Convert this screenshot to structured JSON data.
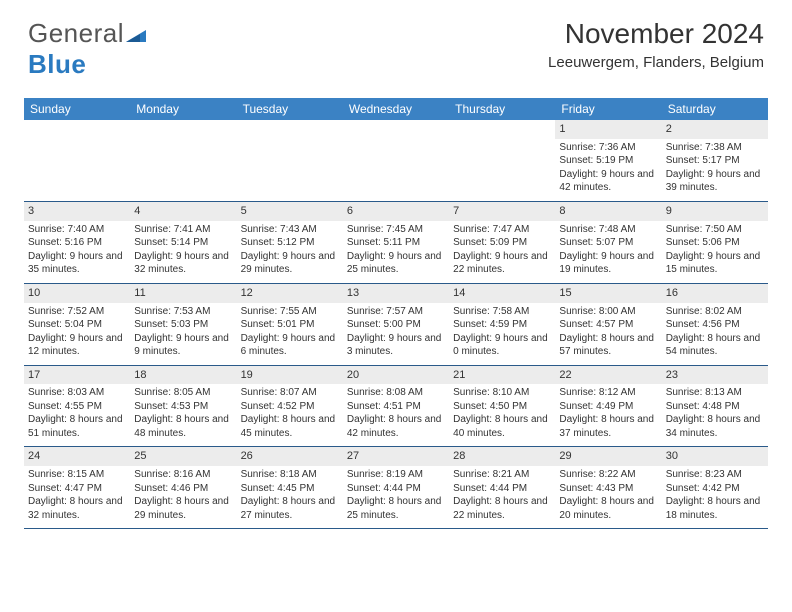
{
  "logo": {
    "text1": "General",
    "text2": "Blue"
  },
  "title": "November 2024",
  "location": "Leeuwergem, Flanders, Belgium",
  "colors": {
    "header_bg": "#3b82c4",
    "header_text": "#ffffff",
    "daynum_bg": "#ececec",
    "row_border": "#2a5a8a",
    "logo_gray": "#555555",
    "logo_blue": "#2a7ac0"
  },
  "weekdays": [
    "Sunday",
    "Monday",
    "Tuesday",
    "Wednesday",
    "Thursday",
    "Friday",
    "Saturday"
  ],
  "weeks": [
    [
      {
        "empty": true
      },
      {
        "empty": true
      },
      {
        "empty": true
      },
      {
        "empty": true
      },
      {
        "empty": true
      },
      {
        "day": "1",
        "sunrise": "Sunrise: 7:36 AM",
        "sunset": "Sunset: 5:19 PM",
        "daylight": "Daylight: 9 hours and 42 minutes."
      },
      {
        "day": "2",
        "sunrise": "Sunrise: 7:38 AM",
        "sunset": "Sunset: 5:17 PM",
        "daylight": "Daylight: 9 hours and 39 minutes."
      }
    ],
    [
      {
        "day": "3",
        "sunrise": "Sunrise: 7:40 AM",
        "sunset": "Sunset: 5:16 PM",
        "daylight": "Daylight: 9 hours and 35 minutes."
      },
      {
        "day": "4",
        "sunrise": "Sunrise: 7:41 AM",
        "sunset": "Sunset: 5:14 PM",
        "daylight": "Daylight: 9 hours and 32 minutes."
      },
      {
        "day": "5",
        "sunrise": "Sunrise: 7:43 AM",
        "sunset": "Sunset: 5:12 PM",
        "daylight": "Daylight: 9 hours and 29 minutes."
      },
      {
        "day": "6",
        "sunrise": "Sunrise: 7:45 AM",
        "sunset": "Sunset: 5:11 PM",
        "daylight": "Daylight: 9 hours and 25 minutes."
      },
      {
        "day": "7",
        "sunrise": "Sunrise: 7:47 AM",
        "sunset": "Sunset: 5:09 PM",
        "daylight": "Daylight: 9 hours and 22 minutes."
      },
      {
        "day": "8",
        "sunrise": "Sunrise: 7:48 AM",
        "sunset": "Sunset: 5:07 PM",
        "daylight": "Daylight: 9 hours and 19 minutes."
      },
      {
        "day": "9",
        "sunrise": "Sunrise: 7:50 AM",
        "sunset": "Sunset: 5:06 PM",
        "daylight": "Daylight: 9 hours and 15 minutes."
      }
    ],
    [
      {
        "day": "10",
        "sunrise": "Sunrise: 7:52 AM",
        "sunset": "Sunset: 5:04 PM",
        "daylight": "Daylight: 9 hours and 12 minutes."
      },
      {
        "day": "11",
        "sunrise": "Sunrise: 7:53 AM",
        "sunset": "Sunset: 5:03 PM",
        "daylight": "Daylight: 9 hours and 9 minutes."
      },
      {
        "day": "12",
        "sunrise": "Sunrise: 7:55 AM",
        "sunset": "Sunset: 5:01 PM",
        "daylight": "Daylight: 9 hours and 6 minutes."
      },
      {
        "day": "13",
        "sunrise": "Sunrise: 7:57 AM",
        "sunset": "Sunset: 5:00 PM",
        "daylight": "Daylight: 9 hours and 3 minutes."
      },
      {
        "day": "14",
        "sunrise": "Sunrise: 7:58 AM",
        "sunset": "Sunset: 4:59 PM",
        "daylight": "Daylight: 9 hours and 0 minutes."
      },
      {
        "day": "15",
        "sunrise": "Sunrise: 8:00 AM",
        "sunset": "Sunset: 4:57 PM",
        "daylight": "Daylight: 8 hours and 57 minutes."
      },
      {
        "day": "16",
        "sunrise": "Sunrise: 8:02 AM",
        "sunset": "Sunset: 4:56 PM",
        "daylight": "Daylight: 8 hours and 54 minutes."
      }
    ],
    [
      {
        "day": "17",
        "sunrise": "Sunrise: 8:03 AM",
        "sunset": "Sunset: 4:55 PM",
        "daylight": "Daylight: 8 hours and 51 minutes."
      },
      {
        "day": "18",
        "sunrise": "Sunrise: 8:05 AM",
        "sunset": "Sunset: 4:53 PM",
        "daylight": "Daylight: 8 hours and 48 minutes."
      },
      {
        "day": "19",
        "sunrise": "Sunrise: 8:07 AM",
        "sunset": "Sunset: 4:52 PM",
        "daylight": "Daylight: 8 hours and 45 minutes."
      },
      {
        "day": "20",
        "sunrise": "Sunrise: 8:08 AM",
        "sunset": "Sunset: 4:51 PM",
        "daylight": "Daylight: 8 hours and 42 minutes."
      },
      {
        "day": "21",
        "sunrise": "Sunrise: 8:10 AM",
        "sunset": "Sunset: 4:50 PM",
        "daylight": "Daylight: 8 hours and 40 minutes."
      },
      {
        "day": "22",
        "sunrise": "Sunrise: 8:12 AM",
        "sunset": "Sunset: 4:49 PM",
        "daylight": "Daylight: 8 hours and 37 minutes."
      },
      {
        "day": "23",
        "sunrise": "Sunrise: 8:13 AM",
        "sunset": "Sunset: 4:48 PM",
        "daylight": "Daylight: 8 hours and 34 minutes."
      }
    ],
    [
      {
        "day": "24",
        "sunrise": "Sunrise: 8:15 AM",
        "sunset": "Sunset: 4:47 PM",
        "daylight": "Daylight: 8 hours and 32 minutes."
      },
      {
        "day": "25",
        "sunrise": "Sunrise: 8:16 AM",
        "sunset": "Sunset: 4:46 PM",
        "daylight": "Daylight: 8 hours and 29 minutes."
      },
      {
        "day": "26",
        "sunrise": "Sunrise: 8:18 AM",
        "sunset": "Sunset: 4:45 PM",
        "daylight": "Daylight: 8 hours and 27 minutes."
      },
      {
        "day": "27",
        "sunrise": "Sunrise: 8:19 AM",
        "sunset": "Sunset: 4:44 PM",
        "daylight": "Daylight: 8 hours and 25 minutes."
      },
      {
        "day": "28",
        "sunrise": "Sunrise: 8:21 AM",
        "sunset": "Sunset: 4:44 PM",
        "daylight": "Daylight: 8 hours and 22 minutes."
      },
      {
        "day": "29",
        "sunrise": "Sunrise: 8:22 AM",
        "sunset": "Sunset: 4:43 PM",
        "daylight": "Daylight: 8 hours and 20 minutes."
      },
      {
        "day": "30",
        "sunrise": "Sunrise: 8:23 AM",
        "sunset": "Sunset: 4:42 PM",
        "daylight": "Daylight: 8 hours and 18 minutes."
      }
    ]
  ]
}
